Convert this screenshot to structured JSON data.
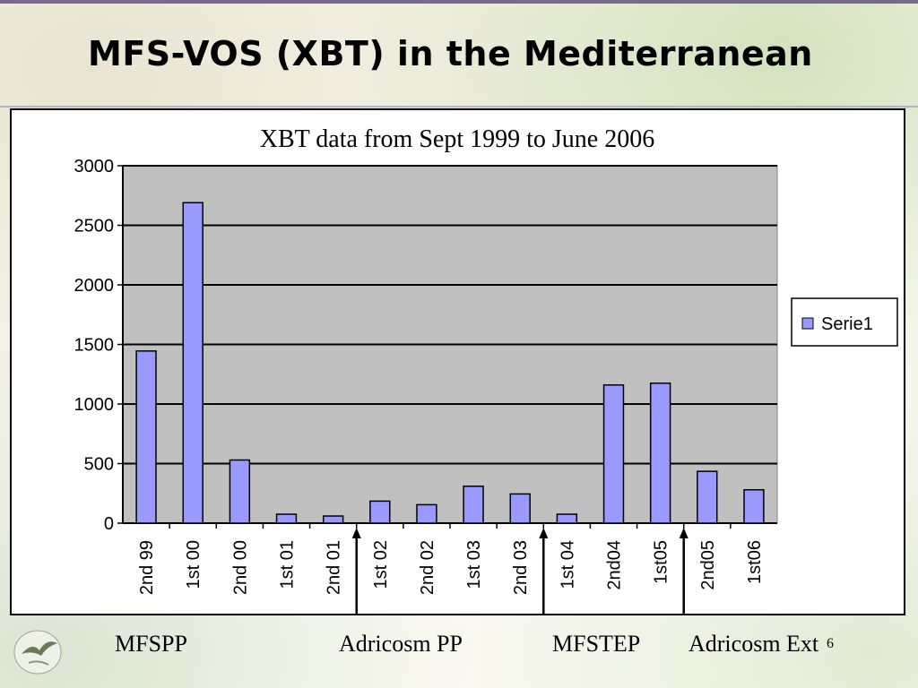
{
  "slide": {
    "title": "MFS-VOS (XBT) in the Mediterranean",
    "page_number": "6"
  },
  "chart_data": {
    "type": "bar",
    "title": "XBT data from Sept 1999 to June 2006",
    "xlabel": "",
    "ylabel": "",
    "categories": [
      "2nd 99",
      "1st 00",
      "2nd 00",
      "1st 01",
      "2nd 01",
      "1st 02",
      "2nd 02",
      "1st 03",
      "2nd 03",
      "1st 04",
      "2nd04",
      "1st05",
      "2nd05",
      "1st06"
    ],
    "series": [
      {
        "name": "Serie1",
        "values": [
          1445,
          2690,
          530,
          75,
          60,
          185,
          155,
          310,
          245,
          75,
          1160,
          1175,
          435,
          280
        ]
      }
    ],
    "ylim": [
      0,
      3000
    ],
    "yticks": [
      0,
      500,
      1000,
      1500,
      2000,
      2500,
      3000
    ],
    "grid": true,
    "legend": "right",
    "colors": {
      "bar_fill": "#9999ff",
      "bar_stroke": "#000000",
      "plot_bg": "#c0c0c0",
      "gridline": "#000000"
    },
    "periods": [
      {
        "label": "MFSPP",
        "start": "2nd 99",
        "end": "2nd 01"
      },
      {
        "label": "Adricosm PP",
        "start": "1st 02",
        "end": "2nd 03"
      },
      {
        "label": "MFSTEP",
        "start": "1st 04",
        "end": "1st05"
      },
      {
        "label": "Adricosm Ext",
        "start": "2nd05",
        "end": "1st06"
      }
    ]
  }
}
